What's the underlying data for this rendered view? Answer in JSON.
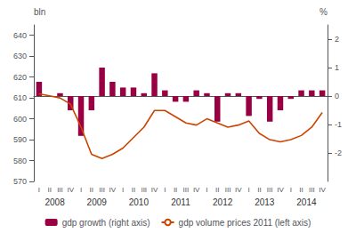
{
  "chart_data": {
    "type": "bar",
    "ylabel": "bln",
    "y2label": "%",
    "categories": [
      "I",
      "II",
      "III",
      "IV",
      "I",
      "II",
      "III",
      "IV",
      "I",
      "II",
      "III",
      "IV",
      "I",
      "II",
      "III",
      "IV",
      "I",
      "II",
      "III",
      "IV",
      "I",
      "II",
      "III",
      "IV",
      "I",
      "II",
      "III",
      "IV"
    ],
    "annotations": [
      "2008",
      "2009",
      "2010",
      "2011",
      "2012",
      "2013",
      "2014"
    ],
    "series": [
      {
        "name": "gdp growth (right axis)",
        "type": "bar",
        "axis": "y2",
        "color": "#990044",
        "values": [
          0.5,
          0.0,
          0.1,
          -0.5,
          -1.4,
          -0.5,
          1.0,
          0.5,
          0.3,
          0.3,
          0.1,
          0.8,
          0.2,
          -0.2,
          -0.2,
          0.2,
          0.1,
          -0.9,
          0.1,
          0.1,
          -0.7,
          -0.1,
          -0.9,
          -0.5,
          -0.1,
          0.2,
          0.2,
          0.2
        ]
      },
      {
        "name": "gdp volume prices 2011 (left axis)",
        "type": "line",
        "color": "#cc4400",
        "values": [
          612,
          611,
          610,
          607,
          596,
          583,
          581,
          583,
          586,
          591,
          596,
          604,
          604,
          601,
          598,
          597,
          600,
          598,
          596,
          597,
          599,
          593,
          590,
          589,
          590,
          592,
          596,
          603
        ]
      }
    ],
    "ylim": [
      570,
      645
    ],
    "yticks": [
      570,
      580,
      590,
      600,
      610,
      620,
      630,
      640
    ],
    "y2lim": [
      -3,
      2.5
    ],
    "y2ticks": [
      -2,
      -1,
      0,
      1,
      2
    ],
    "grid": false,
    "legend": "bottom"
  }
}
